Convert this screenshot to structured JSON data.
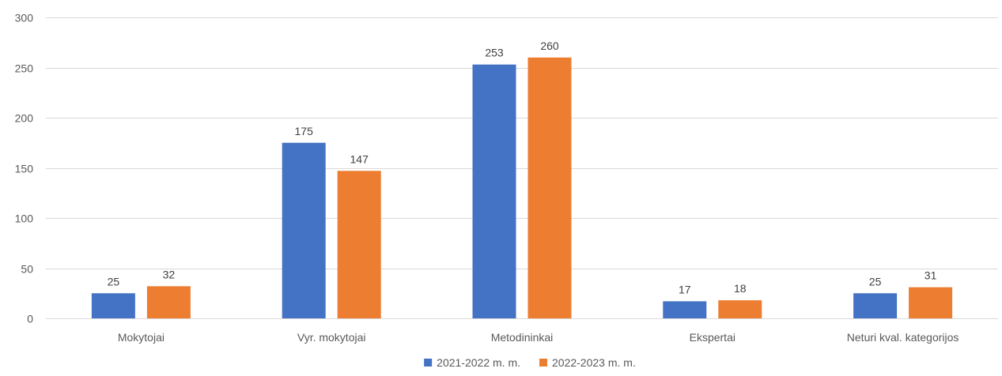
{
  "chart_data": {
    "type": "bar",
    "title": "",
    "xlabel": "",
    "ylabel": "",
    "categories": [
      "Mokytojai",
      "Vyr. mokytojai",
      "Metodininkai",
      "Ekspertai",
      "Neturi kval. kategorijos"
    ],
    "series": [
      {
        "name": "2021-2022 m. m.",
        "values": [
          25,
          175,
          253,
          17,
          25
        ],
        "color": "#4472c4"
      },
      {
        "name": "2022-2023 m. m.",
        "values": [
          32,
          147,
          260,
          18,
          31
        ],
        "color": "#ed7d31"
      }
    ],
    "ylim": [
      0,
      300
    ],
    "yticks": [
      0,
      50,
      100,
      150,
      200,
      250,
      300
    ],
    "grid": true,
    "legend_position": "bottom-center",
    "data_labels": true
  }
}
